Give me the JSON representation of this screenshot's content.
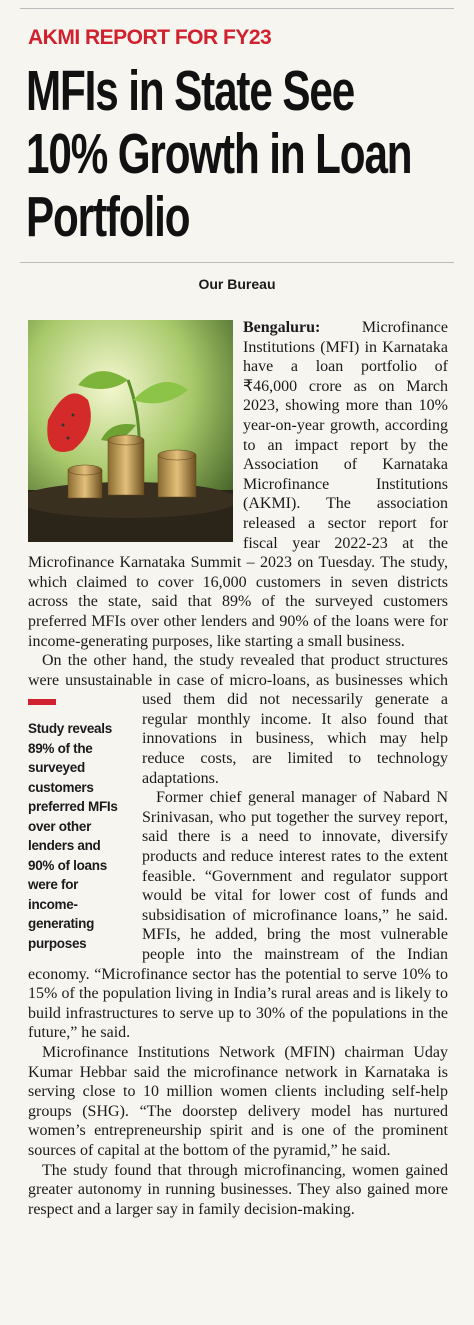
{
  "kicker": "AKMI REPORT FOR FY23",
  "headline": "MFIs in State See 10% Growth in Loan Portfolio",
  "byline": "Our Bureau",
  "article": {
    "dateline": "Bengaluru:",
    "paragraphs": [
      "Microfinance Institutions (MFI) in Karnataka have a loan portfolio of ₹46,000 crore as on March 2023, showing more than 10% year-on-year growth, according to an impact report by the Association of Karnataka Microfinance Institutions (AKMI). The association released a sector report for fiscal year 2022-23 at the Microfinance Karnataka Summit – 2023 on Tuesday. The study, which claimed to cover 16,000 customers in seven districts across the state, said that 89% of the surveyed customers preferred MFIs over other lenders and 90% of the loans were for income-generating purposes, like starting a small business.",
      "On the other hand, the study revealed that product structures were unsustainable in case of micro-loans, as businesses which used them did not necessarily generate a regular monthly income. It also found that innovations in business, which may help reduce costs, are limited to technology adaptations.",
      "Former chief general manager of Nabard N Srinivasan, who put together the survey report, said there is a need to innovate, diversify products and reduce interest rates to the extent feasible. “Government and regulator support would be vital for lower cost of funds and subsidisation of microfinance loans,” he said. MFIs, he added, bring the most vulnerable people into the mainstream of the Indian economy. “Microfinance sector has the potential to serve 10% to 15% of the population living in India’s rural areas and is likely to build infrastructures to serve up to 30% of the populations in the future,” he said.",
      "Microfinance Institutions Network (MFIN) chairman Uday Kumar Hebbar said the microfinance network in Karnataka is serving close to 10 million women clients including self-help groups (SHG). “The doorstep delivery model has nurtured women’s entrepreneurship spirit and is one of the prominent sources of capital at the bottom of the pyramid,” he said.",
      "The study found that through microfinancing, women gained greater autonomy in running businesses. They also gained more respect and a larger say in family decision-making."
    ]
  },
  "sidebar": {
    "text": "Study reveals 89% of the surveyed customers preferred MFIs over other lenders and 90% of loans were for income-generating purposes"
  }
}
